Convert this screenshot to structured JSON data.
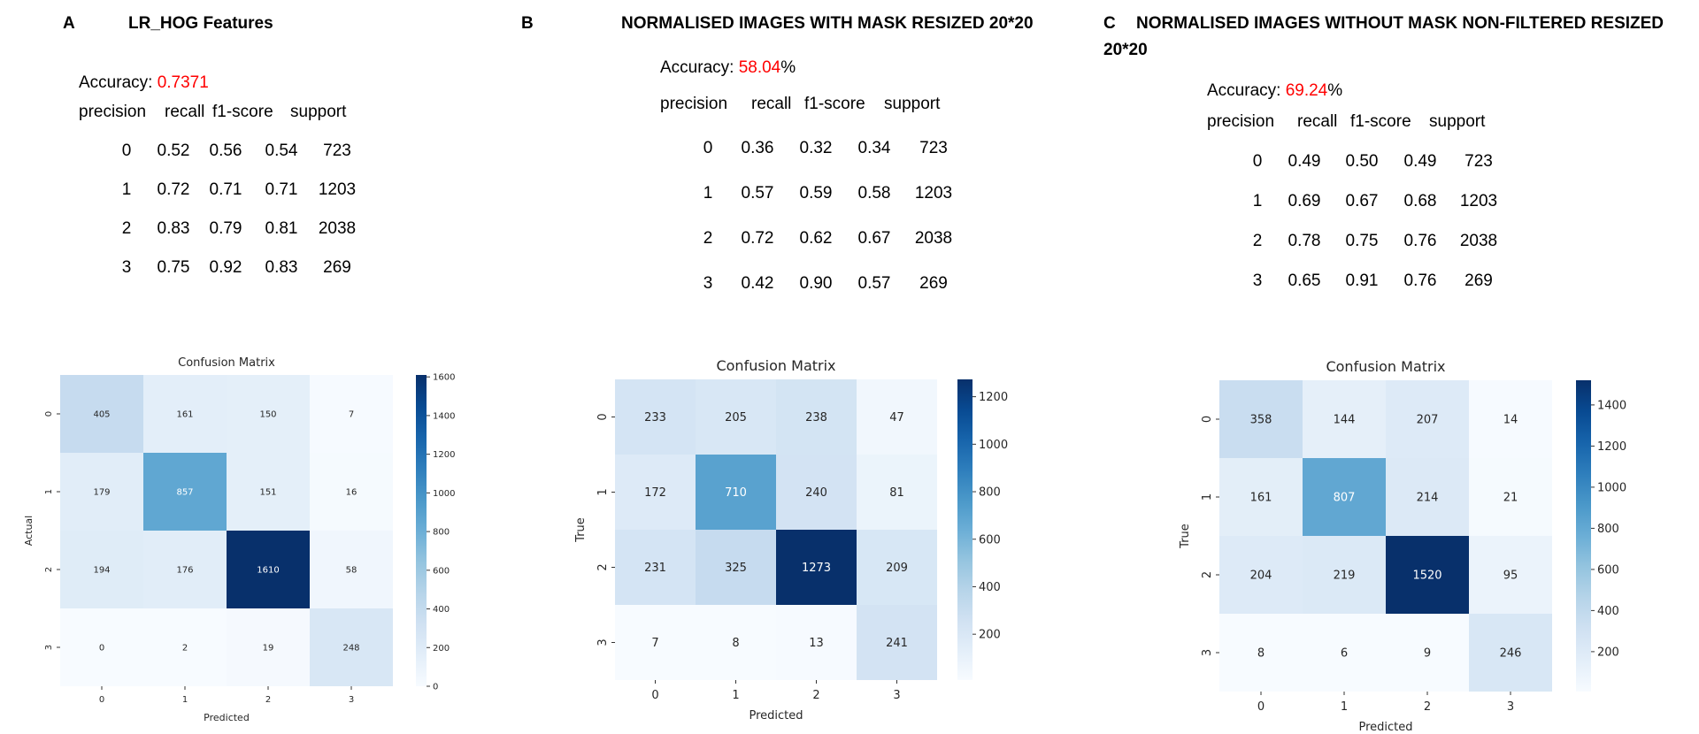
{
  "panels": [
    {
      "letter": "A",
      "title": "LR_HOG Features",
      "accuracy_label": "Accuracy: ",
      "accuracy_value": "0.7371",
      "accuracy_suffix": "",
      "report_header": [
        "precision",
        "recall",
        "f1-score",
        "support"
      ],
      "report_rows": [
        [
          "0",
          "0.52",
          "0.56",
          "0.54",
          "723"
        ],
        [
          "1",
          "0.72",
          "0.71",
          "0.71",
          "1203"
        ],
        [
          "2",
          "0.83",
          "0.79",
          "0.81",
          "2038"
        ],
        [
          "3",
          "0.75",
          "0.92",
          "0.83",
          "269"
        ]
      ]
    },
    {
      "letter": "B",
      "title": "NORMALISED IMAGES WITH MASK RESIZED 20*20",
      "accuracy_label": "Accuracy: ",
      "accuracy_value": "58.04",
      "accuracy_suffix": "%",
      "report_header": [
        "precision",
        "recall",
        "f1-score",
        "support"
      ],
      "report_rows": [
        [
          "0",
          "0.36",
          "0.32",
          "0.34",
          "723"
        ],
        [
          "1",
          "0.57",
          "0.59",
          "0.58",
          "1203"
        ],
        [
          "2",
          "0.72",
          "0.62",
          "0.67",
          "2038"
        ],
        [
          "3",
          "0.42",
          "0.90",
          "0.57",
          "269"
        ]
      ]
    },
    {
      "letter": "C",
      "title": "NORMALISED IMAGES WITHOUT MASK NON-FILTERED  RESIZED",
      "title_line2": "20*20",
      "accuracy_label": "Accuracy: ",
      "accuracy_value": "69.24",
      "accuracy_suffix": "%",
      "report_header": [
        "precision",
        "recall",
        "f1-score",
        "support"
      ],
      "report_rows": [
        [
          "0",
          "0.49",
          "0.50",
          "0.49",
          "723"
        ],
        [
          "1",
          "0.69",
          "0.67",
          "0.68",
          "1203"
        ],
        [
          "2",
          "0.78",
          "0.75",
          "0.76",
          "2038"
        ],
        [
          "3",
          "0.65",
          "0.91",
          "0.76",
          "269"
        ]
      ]
    }
  ],
  "chart_data": [
    {
      "type": "heatmap",
      "title": "Confusion Matrix",
      "xlabel": "Predicted",
      "ylabel": "Actual",
      "x_categories": [
        "0",
        "1",
        "2",
        "3"
      ],
      "y_categories": [
        "0",
        "1",
        "2",
        "3"
      ],
      "values": [
        [
          405,
          161,
          150,
          7
        ],
        [
          179,
          857,
          151,
          16
        ],
        [
          194,
          176,
          1610,
          58
        ],
        [
          0,
          2,
          19,
          248
        ]
      ],
      "colormap": "Blues",
      "colorbar_range": [
        0,
        1610
      ],
      "colorbar_ticks": [
        0,
        200,
        400,
        600,
        800,
        1000,
        1200,
        1400,
        1600
      ]
    },
    {
      "type": "heatmap",
      "title": "Confusion Matrix",
      "xlabel": "Predicted",
      "ylabel": "True",
      "x_categories": [
        "0",
        "1",
        "2",
        "3"
      ],
      "y_categories": [
        "0",
        "1",
        "2",
        "3"
      ],
      "values": [
        [
          233,
          205,
          238,
          47
        ],
        [
          172,
          710,
          240,
          81
        ],
        [
          231,
          325,
          1273,
          209
        ],
        [
          7,
          8,
          13,
          241
        ]
      ],
      "colormap": "Blues",
      "colorbar_range": [
        7,
        1273
      ],
      "colorbar_ticks": [
        200,
        400,
        600,
        800,
        1000,
        1200
      ]
    },
    {
      "type": "heatmap",
      "title": "Confusion Matrix",
      "xlabel": "Predicted",
      "ylabel": "True",
      "x_categories": [
        "0",
        "1",
        "2",
        "3"
      ],
      "y_categories": [
        "0",
        "1",
        "2",
        "3"
      ],
      "values": [
        [
          358,
          144,
          207,
          14
        ],
        [
          161,
          807,
          214,
          21
        ],
        [
          204,
          219,
          1520,
          95
        ],
        [
          8,
          6,
          9,
          246
        ]
      ],
      "colormap": "Blues",
      "colorbar_range": [
        6,
        1520
      ],
      "colorbar_ticks": [
        200,
        400,
        600,
        800,
        1000,
        1200,
        1400
      ]
    }
  ]
}
